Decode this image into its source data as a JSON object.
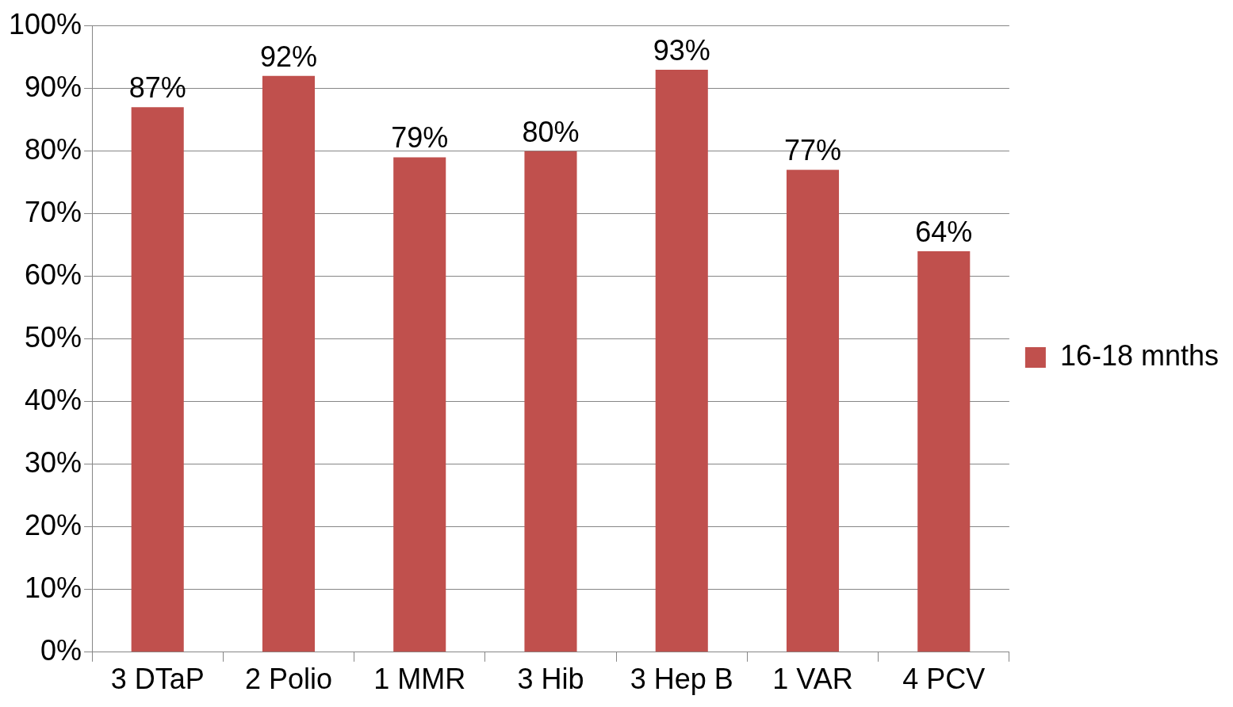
{
  "chart_data": {
    "type": "bar",
    "categories": [
      "3 DTaP",
      "2 Polio",
      "1 MMR",
      "3 Hib",
      "3 Hep B",
      "1 VAR",
      "4 PCV"
    ],
    "series": [
      {
        "name": "16-18 mnths",
        "color": "#c0504d",
        "values": [
          87,
          92,
          79,
          80,
          93,
          77,
          64
        ],
        "value_labels": [
          "87%",
          "92%",
          "79%",
          "80%",
          "93%",
          "77%",
          "64%"
        ]
      }
    ],
    "ylim": [
      0,
      100
    ],
    "yticks": [
      {
        "value": 0,
        "label": "0%"
      },
      {
        "value": 10,
        "label": "10%"
      },
      {
        "value": 20,
        "label": "20%"
      },
      {
        "value": 30,
        "label": "30%"
      },
      {
        "value": 40,
        "label": "40%"
      },
      {
        "value": 50,
        "label": "50%"
      },
      {
        "value": 60,
        "label": "60%"
      },
      {
        "value": 70,
        "label": "70%"
      },
      {
        "value": 80,
        "label": "80%"
      },
      {
        "value": 90,
        "label": "90%"
      },
      {
        "value": 100,
        "label": "100%"
      }
    ],
    "grid": "y",
    "legend": "right"
  }
}
